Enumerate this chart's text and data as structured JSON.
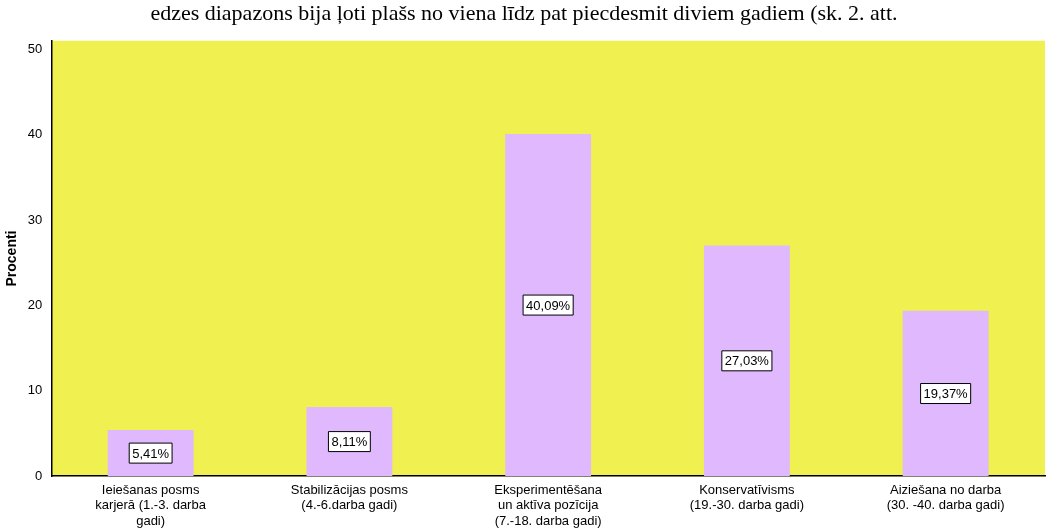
{
  "chart_data": {
    "type": "bar",
    "ylabel": "Procenti",
    "annotations": [
      "edzes diapazons bija ļoti plašs no viena līdz pat piecdesmit diviem gadiem (sk. 2. att."
    ],
    "categories": [
      "Ieiešanas posms\nkarjerā (1.-3. darba\ngadi)",
      "Stabilizācijas posms\n(4.-6.darba gadi)",
      "Eksperimentēšana\nun aktīva pozīcija\n(7.-18. darba gadi)",
      "Konservatīvisms\n(19.-30. darba gadi)",
      "Aiziešana no darba\n(30. -40. darba gadi)"
    ],
    "values": [
      5.41,
      8.11,
      40.09,
      27.03,
      19.37
    ],
    "value_labels": [
      "5,41%",
      "8,11%",
      "40,09%",
      "27,03%",
      "19,37%"
    ],
    "color": "#dfb8fe",
    "ylim": [
      0,
      51
    ],
    "yticks": [
      0,
      10,
      20,
      30,
      40,
      50
    ],
    "grid": false,
    "legend": false
  }
}
